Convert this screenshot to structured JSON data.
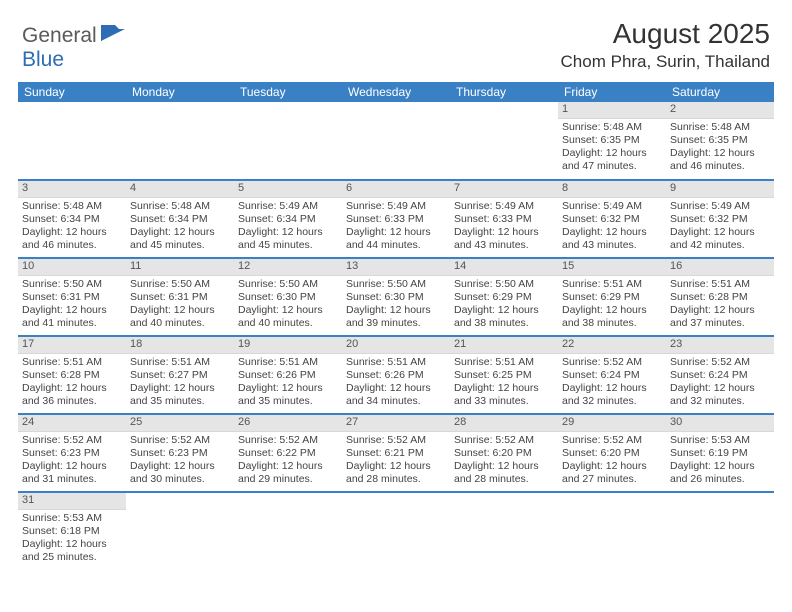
{
  "logo": {
    "part1": "General",
    "part2": "Blue"
  },
  "title": "August 2025",
  "location": "Chom Phra, Surin, Thailand",
  "colors": {
    "header_bg": "#3a80c4",
    "header_text": "#ffffff",
    "daynum_bg": "#e5e5e5",
    "daynum_text": "#555555",
    "body_text": "#444444",
    "week_sep": "#3a80c4",
    "logo_gray": "#5a5a5a",
    "logo_blue": "#2d6db3"
  },
  "day_headers": [
    "Sunday",
    "Monday",
    "Tuesday",
    "Wednesday",
    "Thursday",
    "Friday",
    "Saturday"
  ],
  "weeks": [
    [
      null,
      null,
      null,
      null,
      null,
      {
        "n": "1",
        "sr": "5:48 AM",
        "ss": "6:35 PM",
        "dl": "12 hours and 47 minutes."
      },
      {
        "n": "2",
        "sr": "5:48 AM",
        "ss": "6:35 PM",
        "dl": "12 hours and 46 minutes."
      }
    ],
    [
      {
        "n": "3",
        "sr": "5:48 AM",
        "ss": "6:34 PM",
        "dl": "12 hours and 46 minutes."
      },
      {
        "n": "4",
        "sr": "5:48 AM",
        "ss": "6:34 PM",
        "dl": "12 hours and 45 minutes."
      },
      {
        "n": "5",
        "sr": "5:49 AM",
        "ss": "6:34 PM",
        "dl": "12 hours and 45 minutes."
      },
      {
        "n": "6",
        "sr": "5:49 AM",
        "ss": "6:33 PM",
        "dl": "12 hours and 44 minutes."
      },
      {
        "n": "7",
        "sr": "5:49 AM",
        "ss": "6:33 PM",
        "dl": "12 hours and 43 minutes."
      },
      {
        "n": "8",
        "sr": "5:49 AM",
        "ss": "6:32 PM",
        "dl": "12 hours and 43 minutes."
      },
      {
        "n": "9",
        "sr": "5:49 AM",
        "ss": "6:32 PM",
        "dl": "12 hours and 42 minutes."
      }
    ],
    [
      {
        "n": "10",
        "sr": "5:50 AM",
        "ss": "6:31 PM",
        "dl": "12 hours and 41 minutes."
      },
      {
        "n": "11",
        "sr": "5:50 AM",
        "ss": "6:31 PM",
        "dl": "12 hours and 40 minutes."
      },
      {
        "n": "12",
        "sr": "5:50 AM",
        "ss": "6:30 PM",
        "dl": "12 hours and 40 minutes."
      },
      {
        "n": "13",
        "sr": "5:50 AM",
        "ss": "6:30 PM",
        "dl": "12 hours and 39 minutes."
      },
      {
        "n": "14",
        "sr": "5:50 AM",
        "ss": "6:29 PM",
        "dl": "12 hours and 38 minutes."
      },
      {
        "n": "15",
        "sr": "5:51 AM",
        "ss": "6:29 PM",
        "dl": "12 hours and 38 minutes."
      },
      {
        "n": "16",
        "sr": "5:51 AM",
        "ss": "6:28 PM",
        "dl": "12 hours and 37 minutes."
      }
    ],
    [
      {
        "n": "17",
        "sr": "5:51 AM",
        "ss": "6:28 PM",
        "dl": "12 hours and 36 minutes."
      },
      {
        "n": "18",
        "sr": "5:51 AM",
        "ss": "6:27 PM",
        "dl": "12 hours and 35 minutes."
      },
      {
        "n": "19",
        "sr": "5:51 AM",
        "ss": "6:26 PM",
        "dl": "12 hours and 35 minutes."
      },
      {
        "n": "20",
        "sr": "5:51 AM",
        "ss": "6:26 PM",
        "dl": "12 hours and 34 minutes."
      },
      {
        "n": "21",
        "sr": "5:51 AM",
        "ss": "6:25 PM",
        "dl": "12 hours and 33 minutes."
      },
      {
        "n": "22",
        "sr": "5:52 AM",
        "ss": "6:24 PM",
        "dl": "12 hours and 32 minutes."
      },
      {
        "n": "23",
        "sr": "5:52 AM",
        "ss": "6:24 PM",
        "dl": "12 hours and 32 minutes."
      }
    ],
    [
      {
        "n": "24",
        "sr": "5:52 AM",
        "ss": "6:23 PM",
        "dl": "12 hours and 31 minutes."
      },
      {
        "n": "25",
        "sr": "5:52 AM",
        "ss": "6:23 PM",
        "dl": "12 hours and 30 minutes."
      },
      {
        "n": "26",
        "sr": "5:52 AM",
        "ss": "6:22 PM",
        "dl": "12 hours and 29 minutes."
      },
      {
        "n": "27",
        "sr": "5:52 AM",
        "ss": "6:21 PM",
        "dl": "12 hours and 28 minutes."
      },
      {
        "n": "28",
        "sr": "5:52 AM",
        "ss": "6:20 PM",
        "dl": "12 hours and 28 minutes."
      },
      {
        "n": "29",
        "sr": "5:52 AM",
        "ss": "6:20 PM",
        "dl": "12 hours and 27 minutes."
      },
      {
        "n": "30",
        "sr": "5:53 AM",
        "ss": "6:19 PM",
        "dl": "12 hours and 26 minutes."
      }
    ],
    [
      {
        "n": "31",
        "sr": "5:53 AM",
        "ss": "6:18 PM",
        "dl": "12 hours and 25 minutes."
      },
      null,
      null,
      null,
      null,
      null,
      null
    ]
  ],
  "labels": {
    "sunrise": "Sunrise: ",
    "sunset": "Sunset: ",
    "daylight": "Daylight: "
  }
}
